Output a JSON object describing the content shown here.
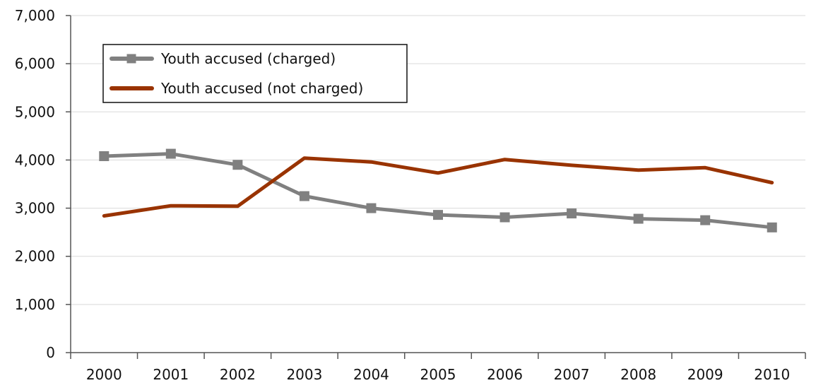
{
  "chart_data": {
    "type": "line",
    "title": "",
    "xlabel": "",
    "ylabel": "",
    "categories": [
      "2000",
      "2001",
      "2002",
      "2003",
      "2004",
      "2005",
      "2006",
      "2007",
      "2008",
      "2009",
      "2010"
    ],
    "ylim": [
      0,
      7000
    ],
    "yticks": [
      0,
      1000,
      2000,
      3000,
      4000,
      5000,
      6000,
      7000
    ],
    "ytick_labels": [
      "0",
      "1,000",
      "2,000",
      "3,000",
      "4,000",
      "5,000",
      "6,000",
      "7,000"
    ],
    "grid": "horizontal",
    "legend_position": "top-left",
    "series": [
      {
        "name": "Youth accused (charged)",
        "color": "#808080",
        "marker": "square",
        "values": [
          4080,
          4130,
          3900,
          3250,
          3000,
          2860,
          2810,
          2890,
          2780,
          2750,
          2600
        ]
      },
      {
        "name": "Youth accused (not charged)",
        "color": "#993300",
        "marker": "none",
        "values": [
          2840,
          3050,
          3040,
          4040,
          3960,
          3730,
          4010,
          3890,
          3790,
          3840,
          3530
        ]
      }
    ]
  }
}
